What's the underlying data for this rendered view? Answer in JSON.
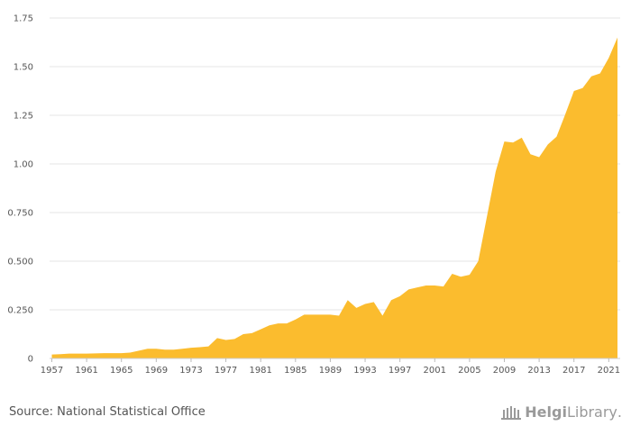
{
  "chart_data": {
    "type": "area",
    "color": "#FBBC2E",
    "grid": true,
    "ylim": [
      0,
      1.75
    ],
    "yticks": [
      "0",
      "0.250",
      "0.500",
      "0.750",
      "1.00",
      "1.25",
      "1.50",
      "1.75"
    ],
    "ytick_values": [
      0,
      0.25,
      0.5,
      0.75,
      1.0,
      1.25,
      1.5,
      1.75
    ],
    "xticks": [
      "1957",
      "1961",
      "1965",
      "1969",
      "1973",
      "1977",
      "1981",
      "1985",
      "1989",
      "1993",
      "1997",
      "2001",
      "2005",
      "2009",
      "2013",
      "2017",
      "2021"
    ],
    "x": [
      1957,
      1958,
      1959,
      1960,
      1961,
      1962,
      1963,
      1964,
      1965,
      1966,
      1967,
      1968,
      1969,
      1970,
      1971,
      1972,
      1973,
      1974,
      1975,
      1976,
      1977,
      1978,
      1979,
      1980,
      1981,
      1982,
      1983,
      1984,
      1985,
      1986,
      1987,
      1988,
      1989,
      1990,
      1991,
      1992,
      1993,
      1994,
      1995,
      1996,
      1997,
      1998,
      1999,
      2000,
      2001,
      2002,
      2003,
      2004,
      2005,
      2006,
      2007,
      2008,
      2009,
      2010,
      2011,
      2012,
      2013,
      2014,
      2015,
      2016,
      2017,
      2018,
      2019,
      2020,
      2021,
      2022
    ],
    "values": [
      0.02,
      0.022,
      0.025,
      0.025,
      0.025,
      0.026,
      0.027,
      0.027,
      0.027,
      0.03,
      0.04,
      0.05,
      0.05,
      0.045,
      0.045,
      0.05,
      0.055,
      0.058,
      0.062,
      0.105,
      0.095,
      0.1,
      0.125,
      0.13,
      0.15,
      0.17,
      0.18,
      0.18,
      0.2,
      0.225,
      0.225,
      0.225,
      0.225,
      0.22,
      0.3,
      0.26,
      0.28,
      0.29,
      0.22,
      0.3,
      0.32,
      0.355,
      0.365,
      0.375,
      0.375,
      0.37,
      0.435,
      0.42,
      0.43,
      0.5,
      0.73,
      0.96,
      1.115,
      1.11,
      1.135,
      1.05,
      1.035,
      1.1,
      1.14,
      1.255,
      1.375,
      1.39,
      1.45,
      1.465,
      1.545,
      1.65
    ]
  },
  "footer": {
    "source": "Source: National Statistical Office",
    "logo_name": "helgi-library-logo",
    "logo_text_bold": "Helgi",
    "logo_text_regular": "Library",
    "logo_dot": "."
  }
}
